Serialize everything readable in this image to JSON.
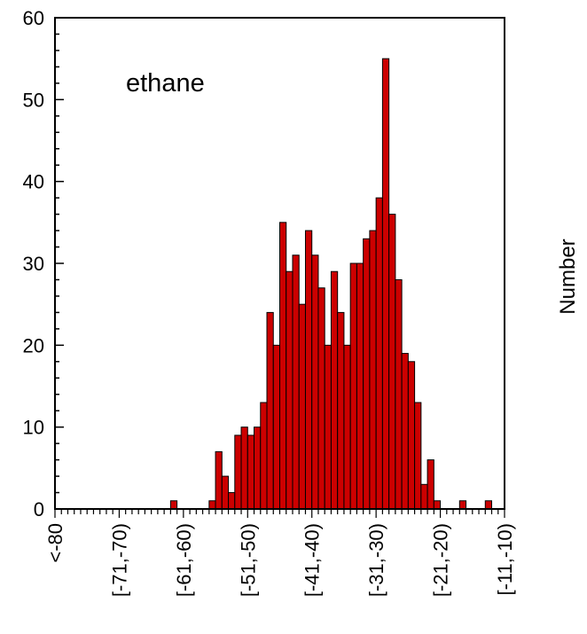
{
  "chart_data": {
    "type": "bar",
    "annotation": "ethane",
    "ylabel": "Number",
    "xlim": [
      -80,
      -10
    ],
    "ylim": [
      0,
      60
    ],
    "bin_width": 1,
    "yticks": [
      0,
      10,
      20,
      30,
      40,
      50,
      60
    ],
    "xtick_labels": [
      {
        "at": -80,
        "label": "<-80"
      },
      {
        "at": -70,
        "label": "[-71,-70)"
      },
      {
        "at": -60,
        "label": "[-61,-60)"
      },
      {
        "at": -50,
        "label": "[-51,-50)"
      },
      {
        "at": -40,
        "label": "[-41,-40)"
      },
      {
        "at": -30,
        "label": "[-31,-30)"
      },
      {
        "at": -20,
        "label": "[-21,-20)"
      },
      {
        "at": -10,
        "label": "[-11,-10)"
      }
    ],
    "grid": false,
    "bar_color": "#cc0000",
    "bins": [
      {
        "x": -62,
        "value": 1
      },
      {
        "x": -56,
        "value": 1
      },
      {
        "x": -55,
        "value": 7
      },
      {
        "x": -54,
        "value": 4
      },
      {
        "x": -53,
        "value": 2
      },
      {
        "x": -52,
        "value": 9
      },
      {
        "x": -51,
        "value": 10
      },
      {
        "x": -50,
        "value": 9
      },
      {
        "x": -49,
        "value": 10
      },
      {
        "x": -48,
        "value": 13
      },
      {
        "x": -47,
        "value": 24
      },
      {
        "x": -46,
        "value": 20
      },
      {
        "x": -45,
        "value": 35
      },
      {
        "x": -44,
        "value": 29
      },
      {
        "x": -43,
        "value": 31
      },
      {
        "x": -42,
        "value": 25
      },
      {
        "x": -41,
        "value": 34
      },
      {
        "x": -40,
        "value": 31
      },
      {
        "x": -39,
        "value": 27
      },
      {
        "x": -38,
        "value": 20
      },
      {
        "x": -37,
        "value": 29
      },
      {
        "x": -36,
        "value": 24
      },
      {
        "x": -35,
        "value": 20
      },
      {
        "x": -34,
        "value": 30
      },
      {
        "x": -33,
        "value": 30
      },
      {
        "x": -32,
        "value": 33
      },
      {
        "x": -31,
        "value": 34
      },
      {
        "x": -30,
        "value": 38
      },
      {
        "x": -29,
        "value": 55
      },
      {
        "x": -28,
        "value": 36
      },
      {
        "x": -27,
        "value": 28
      },
      {
        "x": -26,
        "value": 19
      },
      {
        "x": -25,
        "value": 18
      },
      {
        "x": -24,
        "value": 13
      },
      {
        "x": -23,
        "value": 3
      },
      {
        "x": -22,
        "value": 6
      },
      {
        "x": -21,
        "value": 1
      },
      {
        "x": -17,
        "value": 1
      },
      {
        "x": -13,
        "value": 1
      }
    ]
  }
}
